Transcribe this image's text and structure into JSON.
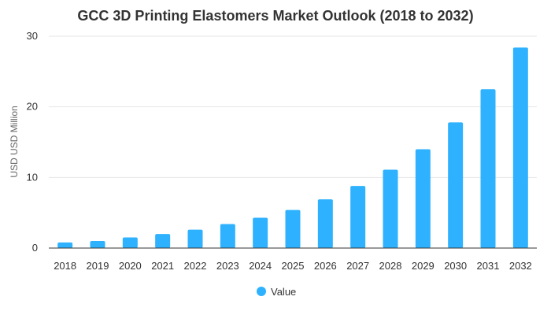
{
  "chart_data": {
    "type": "bar",
    "title": "GCC 3D Printing Elastomers Market Outlook (2018 to 2032)",
    "ylabel": "USD USD Million",
    "xlabel": "",
    "categories": [
      "2018",
      "2019",
      "2020",
      "2021",
      "2022",
      "2023",
      "2024",
      "2025",
      "2026",
      "2027",
      "2028",
      "2029",
      "2030",
      "2031",
      "2032"
    ],
    "series": [
      {
        "name": "Value",
        "color": "#2eb2ff",
        "values": [
          0.8,
          1.0,
          1.5,
          2.0,
          2.6,
          3.4,
          4.3,
          5.4,
          6.9,
          8.8,
          11.1,
          14.0,
          17.8,
          22.5,
          28.4
        ]
      }
    ],
    "ylim": [
      0,
      30
    ],
    "yticks": [
      "0",
      "10",
      "20",
      "30"
    ],
    "grid": true,
    "legend": "bottom-center"
  }
}
